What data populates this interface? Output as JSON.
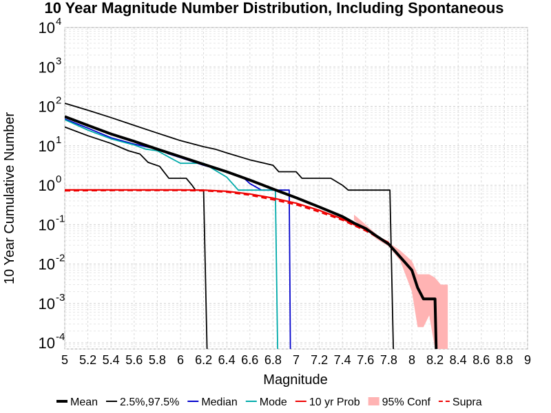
{
  "chart_data": {
    "type": "line",
    "title": "10 Year Magnitude Number Distribution, Including Spontaneous",
    "xlabel": "Magnitude",
    "ylabel": "10 Year Cumulative Number",
    "xlim": [
      5,
      9
    ],
    "ylim": [
      7e-05,
      10000
    ],
    "yscale": "log",
    "grid": true,
    "legend_position": "bottom",
    "x_ticks": [
      "5",
      "5.2",
      "5.4",
      "5.6",
      "5.8",
      "6",
      "6.2",
      "6.4",
      "6.6",
      "6.8",
      "7",
      "7.2",
      "7.4",
      "7.6",
      "7.8",
      "8",
      "8.2",
      "8.4",
      "8.6",
      "8.8",
      "9"
    ],
    "y_ticks": [
      {
        "base": "10",
        "exp": "-4",
        "value": 0.0001
      },
      {
        "base": "10",
        "exp": "-3",
        "value": 0.001
      },
      {
        "base": "10",
        "exp": "-2",
        "value": 0.01
      },
      {
        "base": "10",
        "exp": "-1",
        "value": 0.1
      },
      {
        "base": "10",
        "exp": "0",
        "value": 1
      },
      {
        "base": "10",
        "exp": "1",
        "value": 10
      },
      {
        "base": "10",
        "exp": "2",
        "value": 100
      },
      {
        "base": "10",
        "exp": "3",
        "value": 1000
      },
      {
        "base": "10",
        "exp": "4",
        "value": 10000
      }
    ],
    "legend": [
      {
        "label": "Mean",
        "style": "line",
        "color": "#000000",
        "width": 4,
        "dash": ""
      },
      {
        "label": "2.5%,97.5%",
        "style": "line",
        "color": "#000000",
        "width": 2,
        "dash": ""
      },
      {
        "label": "Median",
        "style": "line",
        "color": "#0000cc",
        "width": 2,
        "dash": ""
      },
      {
        "label": "Mode",
        "style": "line",
        "color": "#00aaaa",
        "width": 2,
        "dash": ""
      },
      {
        "label": "10 yr Prob",
        "style": "line",
        "color": "#ee0000",
        "width": 2,
        "dash": ""
      },
      {
        "label": "95% Conf",
        "style": "fill",
        "color": "#ffb3b3",
        "width": 0,
        "dash": ""
      },
      {
        "label": "Supra",
        "style": "line",
        "color": "#ee0000",
        "width": 2,
        "dash": "8,5"
      }
    ],
    "confidence_band": {
      "name": "95% Conf",
      "color": "#ffb3b3",
      "upper": [
        [
          7.5,
          0.18
        ],
        [
          7.6,
          0.1
        ],
        [
          7.7,
          0.055
        ],
        [
          7.8,
          0.035
        ],
        [
          7.9,
          0.022
        ],
        [
          8.0,
          0.012
        ],
        [
          8.05,
          0.0055
        ],
        [
          8.15,
          0.0055
        ],
        [
          8.2,
          0.0045
        ],
        [
          8.25,
          0.003
        ],
        [
          8.31,
          0.003
        ]
      ],
      "lower": [
        [
          8.31,
          7e-05
        ],
        [
          8.25,
          7e-05
        ],
        [
          8.2,
          7e-05
        ],
        [
          8.15,
          0.0005
        ],
        [
          8.1,
          0.00025
        ],
        [
          8.05,
          0.00025
        ],
        [
          8.0,
          0.002
        ],
        [
          7.9,
          0.012
        ],
        [
          7.8,
          0.028
        ],
        [
          7.7,
          0.042
        ],
        [
          7.6,
          0.075
        ],
        [
          7.5,
          0.13
        ]
      ]
    },
    "series": [
      {
        "name": "2.5%,97.5%",
        "color": "#000000",
        "width": 1.8,
        "dash": "",
        "points": [
          [
            5.0,
            120
          ],
          [
            5.2,
            80
          ],
          [
            5.4,
            52
          ],
          [
            5.6,
            33
          ],
          [
            5.8,
            21
          ],
          [
            6.0,
            13.5
          ],
          [
            6.2,
            9.5
          ],
          [
            6.3,
            8.2
          ],
          [
            6.4,
            6.6
          ],
          [
            6.6,
            4.4
          ],
          [
            6.8,
            3.2
          ],
          [
            6.85,
            2.2
          ],
          [
            7.0,
            2.2
          ],
          [
            7.05,
            1.5
          ],
          [
            7.3,
            1.5
          ],
          [
            7.4,
            1.0
          ],
          [
            7.45,
            0.75
          ],
          [
            7.81,
            0.75
          ],
          [
            7.84,
            7e-05
          ]
        ]
      },
      {
        "name": "2.5%,97.5%",
        "color": "#000000",
        "width": 1.8,
        "dash": "",
        "points": [
          [
            5.0,
            30
          ],
          [
            5.2,
            18
          ],
          [
            5.4,
            11.5
          ],
          [
            5.55,
            7.5
          ],
          [
            5.65,
            6.2
          ],
          [
            5.72,
            3.8
          ],
          [
            5.82,
            3.0
          ],
          [
            5.9,
            1.5
          ],
          [
            6.05,
            1.5
          ],
          [
            6.1,
            1.0
          ],
          [
            6.13,
            0.75
          ],
          [
            6.2,
            0.75
          ],
          [
            6.23,
            7e-05
          ]
        ]
      },
      {
        "name": "Median",
        "color": "#0000cc",
        "width": 1.8,
        "dash": "",
        "points": [
          [
            5.0,
            48
          ],
          [
            5.2,
            28
          ],
          [
            5.4,
            16
          ],
          [
            5.6,
            11
          ],
          [
            5.8,
            8.2
          ],
          [
            5.9,
            6.2
          ],
          [
            6.0,
            5.0
          ],
          [
            6.2,
            3.2
          ],
          [
            6.4,
            2.2
          ],
          [
            6.55,
            1.5
          ],
          [
            6.6,
            1.1
          ],
          [
            6.7,
            0.75
          ],
          [
            6.94,
            0.75
          ],
          [
            6.95,
            7e-05
          ]
        ]
      },
      {
        "name": "Mode",
        "color": "#00aaaa",
        "width": 1.8,
        "dash": "",
        "points": [
          [
            5.0,
            46
          ],
          [
            5.2,
            25
          ],
          [
            5.4,
            15
          ],
          [
            5.6,
            10.5
          ],
          [
            5.7,
            8.2
          ],
          [
            5.8,
            7.5
          ],
          [
            5.92,
            4.8
          ],
          [
            6.0,
            3.6
          ],
          [
            6.1,
            3.6
          ],
          [
            6.2,
            3.6
          ],
          [
            6.4,
            1.6
          ],
          [
            6.5,
            0.75
          ],
          [
            6.82,
            0.75
          ],
          [
            6.84,
            7e-05
          ]
        ]
      },
      {
        "name": "10 yr Prob",
        "color": "#ee0000",
        "width": 2.2,
        "dash": "",
        "points": [
          [
            5.0,
            0.76
          ],
          [
            5.5,
            0.76
          ],
          [
            6.0,
            0.76
          ],
          [
            6.2,
            0.75
          ],
          [
            6.4,
            0.7
          ],
          [
            6.6,
            0.6
          ],
          [
            6.8,
            0.47
          ],
          [
            7.0,
            0.35
          ],
          [
            7.2,
            0.23
          ],
          [
            7.4,
            0.14
          ],
          [
            7.5,
            0.1
          ],
          [
            7.6,
            0.075
          ],
          [
            7.7,
            0.05
          ],
          [
            7.8,
            0.035
          ]
        ]
      },
      {
        "name": "Supra",
        "color": "#ee0000",
        "width": 2.2,
        "dash": "8,5",
        "points": [
          [
            5.0,
            0.72
          ],
          [
            5.5,
            0.74
          ],
          [
            6.0,
            0.74
          ],
          [
            6.2,
            0.72
          ],
          [
            6.4,
            0.67
          ],
          [
            6.6,
            0.56
          ],
          [
            6.8,
            0.43
          ],
          [
            7.0,
            0.32
          ],
          [
            7.2,
            0.21
          ],
          [
            7.4,
            0.13
          ],
          [
            7.5,
            0.095
          ],
          [
            7.6,
            0.07
          ],
          [
            7.7,
            0.048
          ],
          [
            7.8,
            0.034
          ]
        ]
      },
      {
        "name": "Mean",
        "color": "#000000",
        "width": 4,
        "dash": "",
        "points": [
          [
            5.0,
            55
          ],
          [
            5.2,
            33
          ],
          [
            5.4,
            20
          ],
          [
            5.6,
            13
          ],
          [
            5.8,
            8.2
          ],
          [
            6.0,
            5.3
          ],
          [
            6.2,
            3.4
          ],
          [
            6.4,
            2.2
          ],
          [
            6.6,
            1.35
          ],
          [
            6.8,
            0.8
          ],
          [
            7.0,
            0.48
          ],
          [
            7.2,
            0.28
          ],
          [
            7.4,
            0.16
          ],
          [
            7.5,
            0.11
          ],
          [
            7.6,
            0.08
          ],
          [
            7.7,
            0.05
          ],
          [
            7.8,
            0.032
          ],
          [
            7.9,
            0.015
          ],
          [
            8.0,
            0.007
          ],
          [
            8.05,
            0.0025
          ],
          [
            8.1,
            0.0013
          ],
          [
            8.2,
            0.0013
          ],
          [
            8.21,
            7e-05
          ]
        ]
      }
    ]
  }
}
